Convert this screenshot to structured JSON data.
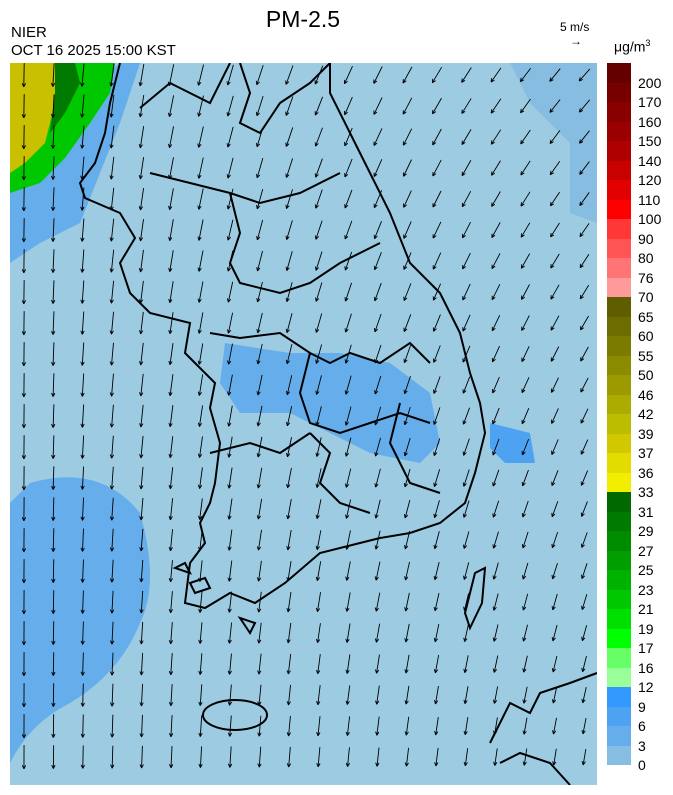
{
  "header": {
    "title": "PM-2.5",
    "organization": "NIER",
    "timestamp": "OCT 16 2025 15:00 KST",
    "wind_reference": "5 m/s",
    "wind_reference_arrow": "→",
    "unit": "μg/m",
    "unit_exponent": "3"
  },
  "map": {
    "variable": "PM-2.5 concentration with wind vectors",
    "background_color": "#9ccbe2",
    "coastline_color": "#000000"
  },
  "colorbar": {
    "labels": [
      "200",
      "170",
      "160",
      "150",
      "140",
      "120",
      "110",
      "100",
      "90",
      "80",
      "76",
      "70",
      "65",
      "60",
      "55",
      "50",
      "46",
      "42",
      "39",
      "37",
      "36",
      "33",
      "31",
      "29",
      "27",
      "25",
      "23",
      "21",
      "19",
      "17",
      "16",
      "12",
      "9",
      "6",
      "3",
      "0"
    ],
    "colors": [
      "#640000",
      "#760000",
      "#880000",
      "#9a0000",
      "#ae0000",
      "#c80000",
      "#e20000",
      "#ff0000",
      "#ff3737",
      "#ff5555",
      "#ff7575",
      "#ff9a9a",
      "#5e5e00",
      "#6c6c00",
      "#7b7b00",
      "#8b8b00",
      "#9b9b00",
      "#abab00",
      "#bcbc00",
      "#d2c800",
      "#e4dc00",
      "#f2ee00",
      "#006a00",
      "#007a00",
      "#008c00",
      "#009e00",
      "#00b200",
      "#00c800",
      "#00e000",
      "#00ff00",
      "#66ff66",
      "#99ff99",
      "#3399ff",
      "#4da3f2",
      "#66aeeb",
      "#88bde2",
      "#9ccbe2"
    ]
  }
}
